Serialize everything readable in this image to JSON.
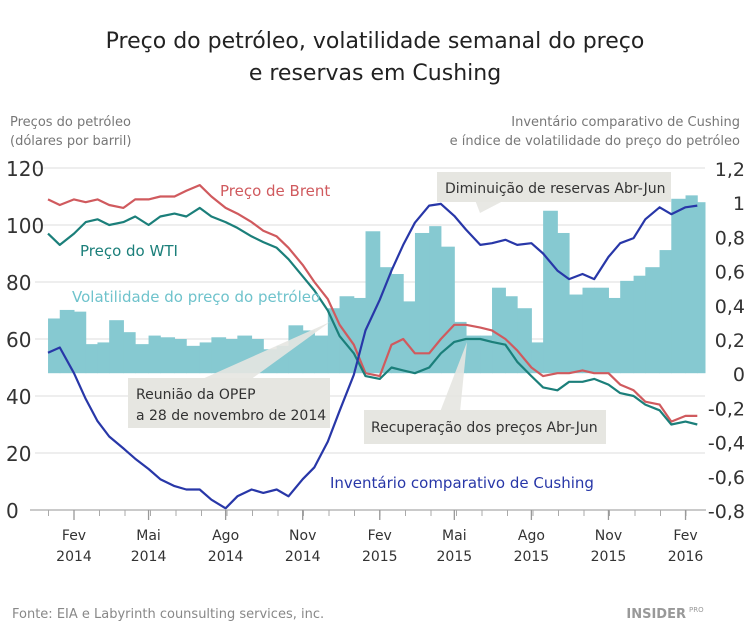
{
  "chart_data": {
    "type": "line",
    "title": "Preço do petróleo, volatilidade semanal do preço e reservas em Cushing",
    "title_lines": [
      "Preço do petróleo, volatilidade semanal do preço",
      "e reservas em Cushing"
    ],
    "ylabel_left": [
      "Preços do petróleo",
      "(dólares por barril)"
    ],
    "ylabel_right": [
      "Inventário comparativo de Cushing",
      "e índice de volatilidade do preço do petróleo"
    ],
    "ylim_left": [
      0,
      120
    ],
    "ylim_right": [
      -0.8,
      1.2
    ],
    "yticks_left": [
      "0",
      "20",
      "40",
      "60",
      "80",
      "100",
      "120"
    ],
    "yticks_right": [
      "-0,8",
      "-0,6",
      "-0,4",
      "-0,2",
      "0",
      "0,2",
      "0,4",
      "0,6",
      "0,8",
      "1",
      "1,2"
    ],
    "xticks": [
      {
        "month": "Fev",
        "year": "2014",
        "date": "2014-02-01"
      },
      {
        "month": "Mai",
        "year": "2014",
        "date": "2014-05-01"
      },
      {
        "month": "Ago",
        "year": "2014",
        "date": "2014-08-01"
      },
      {
        "month": "Nov",
        "year": "2014",
        "date": "2014-11-01"
      },
      {
        "month": "Fev",
        "year": "2015",
        "date": "2015-02-01"
      },
      {
        "month": "Mai",
        "year": "2015",
        "date": "2015-05-01"
      },
      {
        "month": "Ago",
        "year": "2015",
        "date": "2015-08-01"
      },
      {
        "month": "Nov",
        "year": "2015",
        "date": "2015-11-01"
      },
      {
        "month": "Fev",
        "year": "2016",
        "date": "2016-02-01"
      }
    ],
    "grid": true,
    "dates": [
      "2014-01-01",
      "2014-01-15",
      "2014-02-01",
      "2014-02-15",
      "2014-03-01",
      "2014-03-15",
      "2014-04-01",
      "2014-04-15",
      "2014-05-01",
      "2014-05-15",
      "2014-06-01",
      "2014-06-15",
      "2014-07-01",
      "2014-07-15",
      "2014-08-01",
      "2014-08-15",
      "2014-09-01",
      "2014-09-15",
      "2014-10-01",
      "2014-10-15",
      "2014-11-01",
      "2014-11-15",
      "2014-12-01",
      "2014-12-15",
      "2015-01-01",
      "2015-01-15",
      "2015-02-01",
      "2015-02-15",
      "2015-03-01",
      "2015-03-15",
      "2015-04-01",
      "2015-04-15",
      "2015-05-01",
      "2015-05-15",
      "2015-06-01",
      "2015-06-15",
      "2015-07-01",
      "2015-07-15",
      "2015-08-01",
      "2015-08-15",
      "2015-09-01",
      "2015-09-15",
      "2015-10-01",
      "2015-10-15",
      "2015-11-01",
      "2015-11-15",
      "2015-12-01",
      "2015-12-15",
      "2016-01-01",
      "2016-01-15",
      "2016-02-01",
      "2016-02-15"
    ],
    "series": [
      {
        "name": "Preço de Brent",
        "axis": "left",
        "kind": "line",
        "color": "#d05a5e",
        "values": [
          109,
          107,
          109,
          108,
          109,
          107,
          106,
          109,
          109,
          110,
          110,
          112,
          114,
          110,
          106,
          104,
          101,
          98,
          96,
          92,
          86,
          80,
          74,
          65,
          58,
          48,
          47,
          58,
          60,
          55,
          55,
          60,
          65,
          65,
          64,
          63,
          60,
          56,
          50,
          47,
          48,
          48,
          49,
          48,
          48,
          44,
          42,
          38,
          37,
          31,
          33,
          33
        ]
      },
      {
        "name": "Preço do WTI",
        "axis": "left",
        "kind": "line",
        "color": "#1b7f7a",
        "values": [
          97,
          93,
          97,
          101,
          102,
          100,
          101,
          103,
          100,
          103,
          104,
          103,
          106,
          103,
          101,
          99,
          96,
          94,
          92,
          88,
          82,
          77,
          70,
          61,
          55,
          47,
          46,
          50,
          49,
          48,
          50,
          55,
          59,
          60,
          60,
          59,
          58,
          52,
          47,
          43,
          42,
          45,
          45,
          46,
          44,
          41,
          40,
          37,
          35,
          30,
          31,
          30
        ]
      },
      {
        "name": "Volatilidade do preço do petróleo",
        "axis": "right",
        "kind": "bar",
        "color": "#86c9d1",
        "values": [
          0.32,
          0.37,
          0.36,
          0.17,
          0.18,
          0.31,
          0.24,
          0.17,
          0.22,
          0.21,
          0.2,
          0.16,
          0.18,
          0.21,
          0.2,
          0.22,
          0.2,
          0.14,
          0.16,
          0.28,
          0.25,
          0.22,
          0.38,
          0.45,
          0.44,
          0.83,
          0.62,
          0.58,
          0.42,
          0.82,
          0.86,
          0.74,
          0.3,
          0.22,
          0.22,
          0.5,
          0.45,
          0.38,
          0.18,
          0.95,
          0.82,
          0.46,
          0.5,
          0.5,
          0.44,
          0.54,
          0.57,
          0.62,
          0.72,
          1.02,
          1.04,
          1.0
        ]
      },
      {
        "name": "Inventário comparativo de Cushing",
        "axis": "right",
        "kind": "line",
        "color": "#2837a8",
        "values": [
          0.12,
          0.15,
          0.0,
          -0.15,
          -0.28,
          -0.37,
          -0.44,
          -0.5,
          -0.56,
          -0.62,
          -0.66,
          -0.68,
          -0.68,
          -0.74,
          -0.79,
          -0.72,
          -0.68,
          -0.7,
          -0.68,
          -0.72,
          -0.62,
          -0.55,
          -0.4,
          -0.22,
          -0.01,
          0.25,
          0.43,
          0.6,
          0.75,
          0.88,
          0.98,
          0.99,
          0.92,
          0.84,
          0.75,
          0.76,
          0.78,
          0.75,
          0.76,
          0.7,
          0.6,
          0.55,
          0.58,
          0.55,
          0.68,
          0.76,
          0.79,
          0.9,
          0.97,
          0.93,
          0.97,
          0.98
        ]
      }
    ],
    "annotations": {
      "opep": [
        "Reunião da OPEP",
        "a 28 de novembro de 2014"
      ],
      "reservas": "Diminuição de reservas Abr-Jun",
      "precos": "Recuperação dos preços Abr-Jun"
    }
  },
  "footer": {
    "source": "Fonte: EIA e Labyrinth counsulting services, inc.",
    "logo": "INSIDER PRO"
  }
}
